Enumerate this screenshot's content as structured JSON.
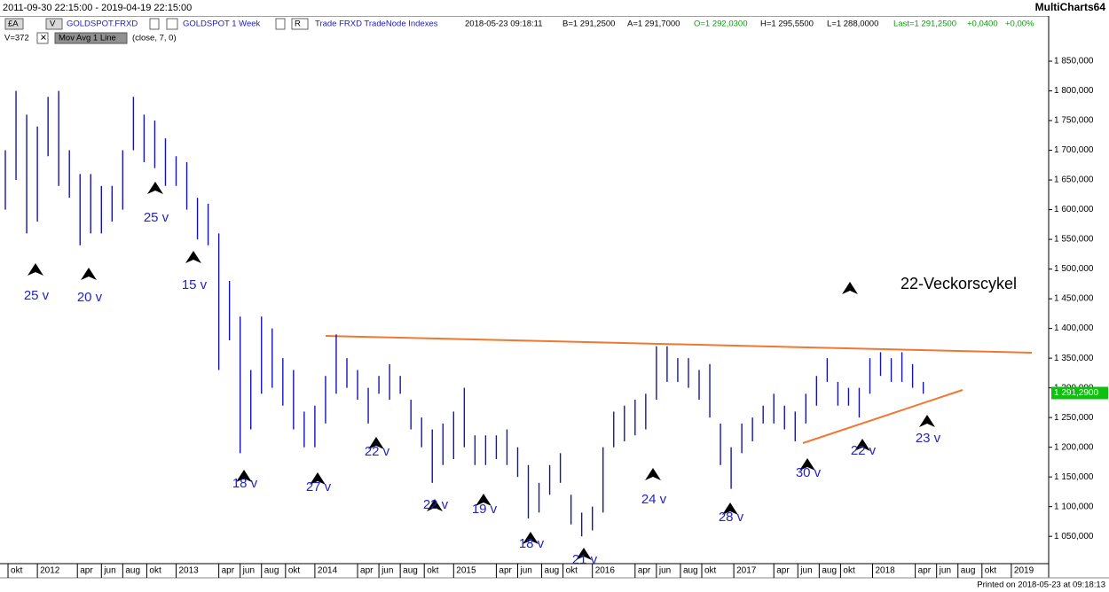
{
  "header": {
    "range": "2011-09-30 22:15:00 - 2019-04-19 22:15:00",
    "app": "MultiCharts64",
    "btn_a": "£A",
    "btn_v": "V",
    "symbol": "GOLDSPOT.FRXD",
    "instrument": "GOLDSPOT 1 Week",
    "btn_r": "R",
    "feed": "Trade FRXD TradeNode Indexes",
    "time": "2018-05-23 09:18:11",
    "bid": "B=1 291,2500",
    "ask": "A=1 291,7000",
    "open": "O=1 292,0300",
    "high": "H=1 295,5500",
    "low": "L=1 288,0000",
    "last": "Last=1 291,2500",
    "change": "+0,0400",
    "change_pct": "+0,00%",
    "volume": "V=372",
    "study": "Mov Avg 1 Line",
    "study_params": "(close, 7, 0)"
  },
  "footer": "Printed on 2018-05-23 at 09:18:13",
  "chart_data": {
    "type": "ohlc",
    "color": "#1414b4",
    "x": [
      1,
      5,
      9,
      13,
      17,
      21,
      25,
      29,
      33,
      37,
      41,
      45,
      49,
      53,
      57,
      61,
      65,
      69,
      73,
      77,
      81,
      85,
      89,
      93,
      97,
      101,
      105,
      109,
      113,
      117,
      121,
      125,
      129,
      133,
      137,
      141,
      145,
      149,
      153,
      157,
      161,
      165,
      169,
      173,
      177,
      181,
      185,
      189,
      193,
      197,
      201,
      205,
      209,
      213,
      217,
      221,
      225,
      229,
      233,
      237,
      241,
      245,
      249,
      253,
      257,
      261,
      265,
      269,
      273,
      277,
      281,
      285,
      289,
      293,
      297,
      301,
      305,
      309,
      313,
      317,
      321,
      325,
      329,
      333,
      337,
      341,
      345
    ],
    "high": [
      1700,
      1800,
      1760,
      1740,
      1790,
      1800,
      1700,
      1660,
      1660,
      1640,
      1640,
      1700,
      1790,
      1760,
      1750,
      1720,
      1690,
      1680,
      1620,
      1610,
      1560,
      1480,
      1420,
      1330,
      1420,
      1400,
      1350,
      1330,
      1260,
      1270,
      1320,
      1390,
      1350,
      1330,
      1300,
      1320,
      1340,
      1320,
      1280,
      1250,
      1230,
      1240,
      1260,
      1300,
      1220,
      1220,
      1220,
      1230,
      1200,
      1170,
      1140,
      1170,
      1190,
      1120,
      1090,
      1100,
      1200,
      1260,
      1270,
      1280,
      1290,
      1370,
      1370,
      1350,
      1350,
      1330,
      1340,
      1240,
      1200,
      1240,
      1250,
      1270,
      1290,
      1270,
      1260,
      1290,
      1320,
      1350,
      1310,
      1300,
      1300,
      1350,
      1360,
      1350,
      1360,
      1340,
      1310
    ],
    "low": [
      1600,
      1650,
      1560,
      1580,
      1690,
      1640,
      1620,
      1540,
      1560,
      1560,
      1580,
      1600,
      1700,
      1680,
      1670,
      1640,
      1640,
      1600,
      1550,
      1540,
      1330,
      1380,
      1190,
      1230,
      1290,
      1300,
      1270,
      1230,
      1200,
      1200,
      1240,
      1290,
      1300,
      1280,
      1240,
      1290,
      1280,
      1290,
      1230,
      1200,
      1140,
      1170,
      1180,
      1200,
      1170,
      1170,
      1180,
      1170,
      1150,
      1080,
      1090,
      1120,
      1140,
      1070,
      1050,
      1060,
      1090,
      1200,
      1210,
      1220,
      1230,
      1280,
      1310,
      1310,
      1300,
      1280,
      1250,
      1170,
      1130,
      1190,
      1210,
      1240,
      1240,
      1230,
      1210,
      1240,
      1270,
      1310,
      1270,
      1270,
      1250,
      1290,
      1320,
      1310,
      1310,
      1300,
      1290
    ],
    "xlim": [
      -1,
      392
    ],
    "xticks": [
      {
        "value": 2,
        "label": "okt"
      },
      {
        "value": 13,
        "label": "2012"
      },
      {
        "value": 28,
        "label": "apr"
      },
      {
        "value": 37,
        "label": "jun"
      },
      {
        "value": 45,
        "label": "aug"
      },
      {
        "value": 54,
        "label": "okt"
      },
      {
        "value": 65,
        "label": "2013"
      },
      {
        "value": 81,
        "label": "apr"
      },
      {
        "value": 89,
        "label": "jun"
      },
      {
        "value": 97,
        "label": "aug"
      },
      {
        "value": 106,
        "label": "okt"
      },
      {
        "value": 117,
        "label": "2014"
      },
      {
        "value": 133,
        "label": "apr"
      },
      {
        "value": 141,
        "label": "jun"
      },
      {
        "value": 149,
        "label": "aug"
      },
      {
        "value": 158,
        "label": "okt"
      },
      {
        "value": 169,
        "label": "2015"
      },
      {
        "value": 185,
        "label": "apr"
      },
      {
        "value": 193,
        "label": "jun"
      },
      {
        "value": 202,
        "label": "aug"
      },
      {
        "value": 210,
        "label": "okt"
      },
      {
        "value": 221,
        "label": "2016"
      },
      {
        "value": 237,
        "label": "apr"
      },
      {
        "value": 245,
        "label": "jun"
      },
      {
        "value": 254,
        "label": "aug"
      },
      {
        "value": 262,
        "label": "okt"
      },
      {
        "value": 274,
        "label": "2017"
      },
      {
        "value": 289,
        "label": "apr"
      },
      {
        "value": 298,
        "label": "jun"
      },
      {
        "value": 306,
        "label": "aug"
      },
      {
        "value": 314,
        "label": "okt"
      },
      {
        "value": 326,
        "label": "2018"
      },
      {
        "value": 342,
        "label": "apr"
      },
      {
        "value": 350,
        "label": "jun"
      },
      {
        "value": 358,
        "label": "aug"
      },
      {
        "value": 367,
        "label": "okt"
      },
      {
        "value": 378,
        "label": "2019"
      }
    ],
    "ylim": [
      1004,
      1953
    ],
    "yticks": [
      {
        "value": 1050,
        "label": "1 050,000"
      },
      {
        "value": 1100,
        "label": "1 100,000"
      },
      {
        "value": 1150,
        "label": "1 150,000"
      },
      {
        "value": 1200,
        "label": "1 200,000"
      },
      {
        "value": 1250,
        "label": "1 250,000"
      },
      {
        "value": 1300,
        "label": "1 300,000"
      },
      {
        "value": 1350,
        "label": "1 350,000"
      },
      {
        "value": 1400,
        "label": "1 400,000"
      },
      {
        "value": 1450,
        "label": "1 450,000"
      },
      {
        "value": 1500,
        "label": "1 500,000"
      },
      {
        "value": 1550,
        "label": "1 550,000"
      },
      {
        "value": 1600,
        "label": "1 600,000"
      },
      {
        "value": 1650,
        "label": "1 650,000"
      },
      {
        "value": 1700,
        "label": "1 700,000"
      },
      {
        "value": 1750,
        "label": "1 750,000"
      },
      {
        "value": 1800,
        "label": "1 800,000"
      },
      {
        "value": 1850,
        "label": "1 850,000"
      }
    ],
    "last_price": {
      "value": 1291.29,
      "label": "1 291,2900"
    },
    "annotation_title": "22-Veckorscykel",
    "annotations": [
      "25 v",
      "20 v",
      "25 v",
      "15 v",
      "18 v",
      "27 v",
      "22 v",
      "22 v",
      "19 v",
      "18 v",
      "21 v",
      "24 v",
      "28 v",
      "30 v",
      "22 v",
      "23 v"
    ]
  }
}
